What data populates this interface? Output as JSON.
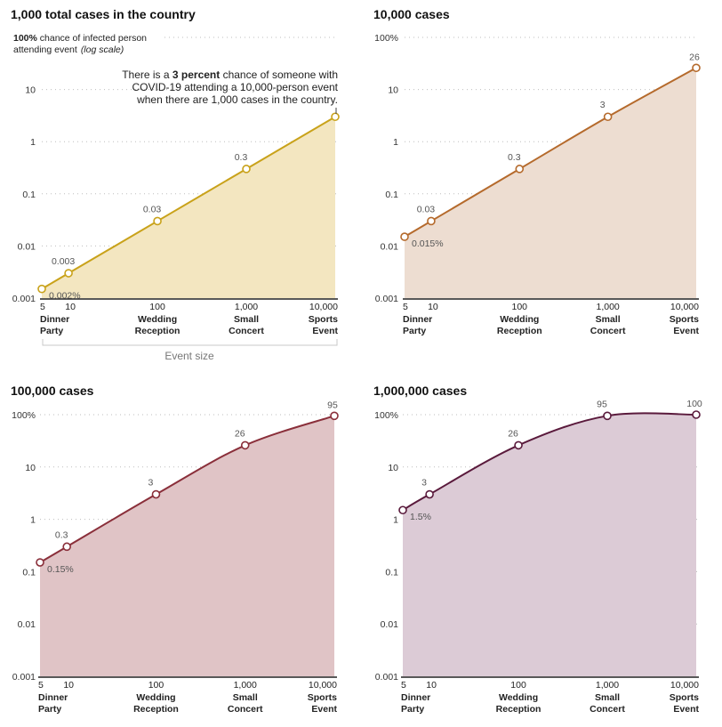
{
  "chart_data": [
    {
      "type": "area",
      "title": "1,000 total cases in the country",
      "ylabel_bold": "100%",
      "ylabel_line1": " chance of infected person",
      "ylabel_line2": "attending event",
      "ylabel_scale": "(log scale)",
      "y_scale": "log",
      "ylim": [
        0.001,
        100
      ],
      "y_ticks": [
        {
          "v": 10,
          "label": "10"
        },
        {
          "v": 1,
          "label": "1"
        },
        {
          "v": 0.1,
          "label": "0.1"
        },
        {
          "v": 0.01,
          "label": "0.01"
        },
        {
          "v": 0.001,
          "label": "0.001"
        }
      ],
      "x_scale": "log",
      "xlim": [
        5,
        10000
      ],
      "x": [
        5,
        10,
        100,
        1000,
        10000
      ],
      "x_tick_labels": [
        "5",
        "10",
        "100",
        "1,000",
        "10,000"
      ],
      "x_categories": [
        {
          "x": 5,
          "line1": "Dinner",
          "line2": "Party"
        },
        {
          "x": 100,
          "line1": "Wedding",
          "line2": "Reception"
        },
        {
          "x": 1000,
          "line1": "Small",
          "line2": "Concert"
        },
        {
          "x": 10000,
          "line1": "Sports",
          "line2": "Event"
        }
      ],
      "xlabel": "Event size",
      "values": [
        0.0015,
        0.003,
        0.03,
        0.3,
        3
      ],
      "point_labels": [
        "0.002%",
        "0.003",
        "0.03",
        "0.3",
        ""
      ],
      "annotation": {
        "line1": "There is a ",
        "bold": "3 percent",
        "line1_end": " chance of someone with",
        "line2": "COVID-19 attending a 10,000-person event",
        "line3": "when there are 1,000 cases in the country."
      },
      "colors": {
        "line": "#c9a21a",
        "fill": "#f3e6c0"
      }
    },
    {
      "type": "area",
      "title": "10,000 cases",
      "y_scale": "log",
      "ylim": [
        0.001,
        100
      ],
      "y_ticks": [
        {
          "v": 100,
          "label": "100%"
        },
        {
          "v": 10,
          "label": "10"
        },
        {
          "v": 1,
          "label": "1"
        },
        {
          "v": 0.1,
          "label": "0.1"
        },
        {
          "v": 0.01,
          "label": "0.01"
        },
        {
          "v": 0.001,
          "label": "0.001"
        }
      ],
      "x_scale": "log",
      "xlim": [
        5,
        10000
      ],
      "x": [
        5,
        10,
        100,
        1000,
        10000
      ],
      "x_tick_labels": [
        "5",
        "10",
        "100",
        "1,000",
        "10,000"
      ],
      "x_categories": [
        {
          "x": 5,
          "line1": "Dinner",
          "line2": "Party"
        },
        {
          "x": 100,
          "line1": "Wedding",
          "line2": "Reception"
        },
        {
          "x": 1000,
          "line1": "Small",
          "line2": "Concert"
        },
        {
          "x": 10000,
          "line1": "Sports",
          "line2": "Event"
        }
      ],
      "values": [
        0.015,
        0.03,
        0.3,
        3,
        26
      ],
      "point_labels": [
        "0.015%",
        "0.03",
        "0.3",
        "3",
        "26"
      ],
      "colors": {
        "line": "#b56a2c",
        "fill": "#edddd1"
      }
    },
    {
      "type": "area",
      "title": "100,000 cases",
      "y_scale": "log",
      "ylim": [
        0.001,
        100
      ],
      "y_ticks": [
        {
          "v": 100,
          "label": "100%"
        },
        {
          "v": 10,
          "label": "10"
        },
        {
          "v": 1,
          "label": "1"
        },
        {
          "v": 0.1,
          "label": "0.1"
        },
        {
          "v": 0.01,
          "label": "0.01"
        },
        {
          "v": 0.001,
          "label": "0.001"
        }
      ],
      "x_scale": "log",
      "xlim": [
        5,
        10000
      ],
      "x": [
        5,
        10,
        100,
        1000,
        10000
      ],
      "x_tick_labels": [
        "5",
        "10",
        "100",
        "1,000",
        "10,000"
      ],
      "x_categories": [
        {
          "x": 5,
          "line1": "Dinner",
          "line2": "Party"
        },
        {
          "x": 100,
          "line1": "Wedding",
          "line2": "Reception"
        },
        {
          "x": 1000,
          "line1": "Small",
          "line2": "Concert"
        },
        {
          "x": 10000,
          "line1": "Sports",
          "line2": "Event"
        }
      ],
      "values": [
        0.15,
        0.3,
        3,
        26,
        95
      ],
      "point_labels": [
        "0.15%",
        "0.3",
        "3",
        "26",
        "95"
      ],
      "colors": {
        "line": "#8a2f3a",
        "fill": "#e0c4c6"
      }
    },
    {
      "type": "area",
      "title": "1,000,000 cases",
      "y_scale": "log",
      "ylim": [
        0.001,
        100
      ],
      "y_ticks": [
        {
          "v": 100,
          "label": "100%"
        },
        {
          "v": 10,
          "label": "10"
        },
        {
          "v": 1,
          "label": "1"
        },
        {
          "v": 0.1,
          "label": "0.1"
        },
        {
          "v": 0.01,
          "label": "0.01"
        },
        {
          "v": 0.001,
          "label": "0.001"
        }
      ],
      "x_scale": "log",
      "xlim": [
        5,
        10000
      ],
      "x": [
        5,
        10,
        100,
        1000,
        10000
      ],
      "x_tick_labels": [
        "5",
        "10",
        "100",
        "1,000",
        "10,000"
      ],
      "x_categories": [
        {
          "x": 5,
          "line1": "Dinner",
          "line2": "Party"
        },
        {
          "x": 100,
          "line1": "Wedding",
          "line2": "Reception"
        },
        {
          "x": 1000,
          "line1": "Small",
          "line2": "Concert"
        },
        {
          "x": 10000,
          "line1": "Sports",
          "line2": "Event"
        }
      ],
      "values": [
        1.5,
        3,
        26,
        95,
        100
      ],
      "point_labels": [
        "1.5%",
        "3",
        "26",
        "95",
        "100"
      ],
      "colors": {
        "line": "#5a1a3c",
        "fill": "#dccbd6"
      }
    }
  ]
}
